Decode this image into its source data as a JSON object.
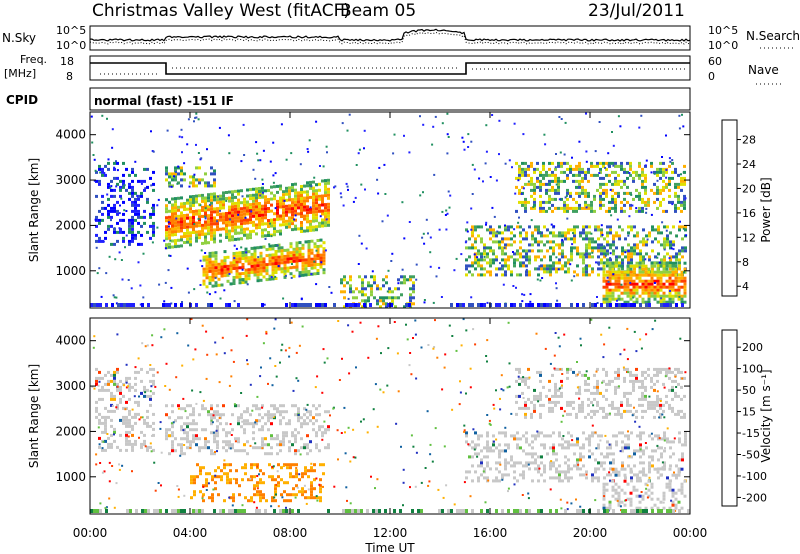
{
  "header": {
    "station": "Christmas Valley West (fitACF)",
    "beam": "Beam 05",
    "date": "23/Jul/2011"
  },
  "strips": {
    "nsky_label": "N.Sky",
    "nsky_ticks": [
      "10^5",
      "10^0"
    ],
    "nsearch_label": "N.Search",
    "nsearch_ticks": [
      "10^5",
      "10^0"
    ],
    "freq_label_1": "Freq.",
    "freq_label_2": "[MHz]",
    "freq_ticks": [
      "18",
      "8"
    ],
    "nave_label": "Nave",
    "nave_ticks": [
      "60",
      "0"
    ],
    "cpid_label": "CPID",
    "cpid_text": "normal (fast) -151 IF"
  },
  "x_axis": {
    "label": "Time UT",
    "ticks": [
      "00:00",
      "04:00",
      "08:00",
      "12:00",
      "16:00",
      "20:00",
      "00:00"
    ]
  },
  "colorbars": {
    "power": {
      "label": "Power [dB]",
      "ticks": [
        "28",
        "24",
        "20",
        "16",
        "12",
        "8",
        "4"
      ],
      "colors": [
        "#ff0000",
        "#ff4000",
        "#ff8000",
        "#ffb000",
        "#e0e000",
        "#90d040",
        "#40a060",
        "#209060",
        "#3050c0",
        "#2020ff",
        "#0000ff"
      ]
    },
    "velocity": {
      "label": "Velocity [m s⁻¹]",
      "ticks": [
        "200",
        "100",
        "50",
        "15",
        "-15",
        "-50",
        "-100",
        "-200"
      ],
      "colors": [
        "#2030c0",
        "#1060a0",
        "#108040",
        "#60c040",
        "#c8c8c8",
        "#ffb000",
        "#ff8000",
        "#ff4000",
        "#ff0000"
      ]
    }
  },
  "chart_data": [
    {
      "type": "heatmap",
      "title": "Power",
      "ylabel": "Slant Range [km]",
      "xlabel": "Time UT",
      "x_range_hours": [
        0,
        24
      ],
      "ylim": [
        180,
        4500
      ],
      "yticks": [
        1000,
        2000,
        3000,
        4000
      ],
      "features": [
        {
          "t0": 3.0,
          "t1": 9.6,
          "r0": 1500,
          "r1": 2600,
          "level": "strong",
          "desc": "upper echo band"
        },
        {
          "t0": 4.5,
          "t1": 9.4,
          "r0": 650,
          "r1": 1400,
          "level": "strong",
          "desc": "lower echo band"
        },
        {
          "t0": 0.2,
          "t1": 2.6,
          "r0": 1600,
          "r1": 3400,
          "level": "weak"
        },
        {
          "t0": 3.0,
          "t1": 5.0,
          "r0": 2900,
          "r1": 3300,
          "level": "moderate"
        },
        {
          "t0": 10.0,
          "t1": 13.0,
          "r0": 200,
          "r1": 900,
          "level": "moderate"
        },
        {
          "t0": 15.0,
          "t1": 23.8,
          "r0": 900,
          "r1": 2000,
          "level": "moderate"
        },
        {
          "t0": 17.0,
          "t1": 23.8,
          "r0": 2300,
          "r1": 3400,
          "level": "moderate"
        },
        {
          "t0": 20.5,
          "t1": 23.8,
          "r0": 300,
          "r1": 1200,
          "level": "strong"
        }
      ]
    },
    {
      "type": "heatmap",
      "title": "Velocity",
      "ylabel": "Slant Range [km]",
      "xlabel": "Time UT",
      "x_range_hours": [
        0,
        24
      ],
      "ylim": [
        180,
        4500
      ],
      "yticks": [
        1000,
        2000,
        3000,
        4000
      ],
      "features": [
        {
          "t0": 4.0,
          "t1": 9.4,
          "r0": 500,
          "r1": 1300,
          "level": "negative",
          "desc": "-50 to -100 m/s band"
        },
        {
          "t0": 3.0,
          "t1": 9.6,
          "r0": 1500,
          "r1": 2600,
          "level": "ground"
        },
        {
          "t0": 0.2,
          "t1": 2.6,
          "r0": 1600,
          "r1": 3400,
          "level": "ground"
        },
        {
          "t0": 15.0,
          "t1": 23.8,
          "r0": 900,
          "r1": 2000,
          "level": "ground"
        },
        {
          "t0": 17.0,
          "t1": 23.8,
          "r0": 2300,
          "r1": 3400,
          "level": "ground"
        },
        {
          "t0": 20.5,
          "t1": 23.8,
          "r0": 300,
          "r1": 1200,
          "level": "ground"
        }
      ]
    }
  ]
}
